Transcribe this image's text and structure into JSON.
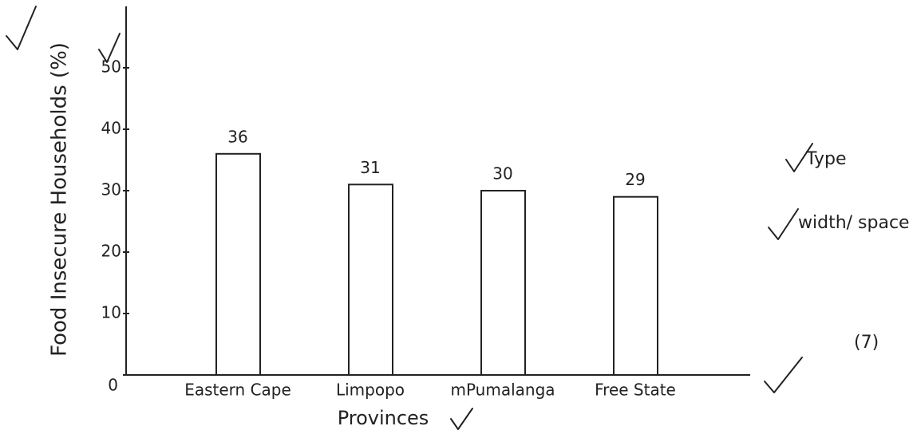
{
  "chart_data": {
    "type": "bar",
    "categories": [
      "Eastern Cape",
      "Limpopo",
      "mPumalanga",
      "Free State"
    ],
    "values": [
      36,
      31,
      30,
      29
    ],
    "color": "#ffffff",
    "xlabel": "Provinces",
    "ylabel": "Food Insecure Households (%)",
    "ylim": [
      0,
      60
    ],
    "yticks": [
      0,
      10,
      20,
      30,
      40,
      50
    ],
    "grid": false,
    "annotations": [
      "Type",
      "width/ space.",
      "(7)"
    ]
  }
}
